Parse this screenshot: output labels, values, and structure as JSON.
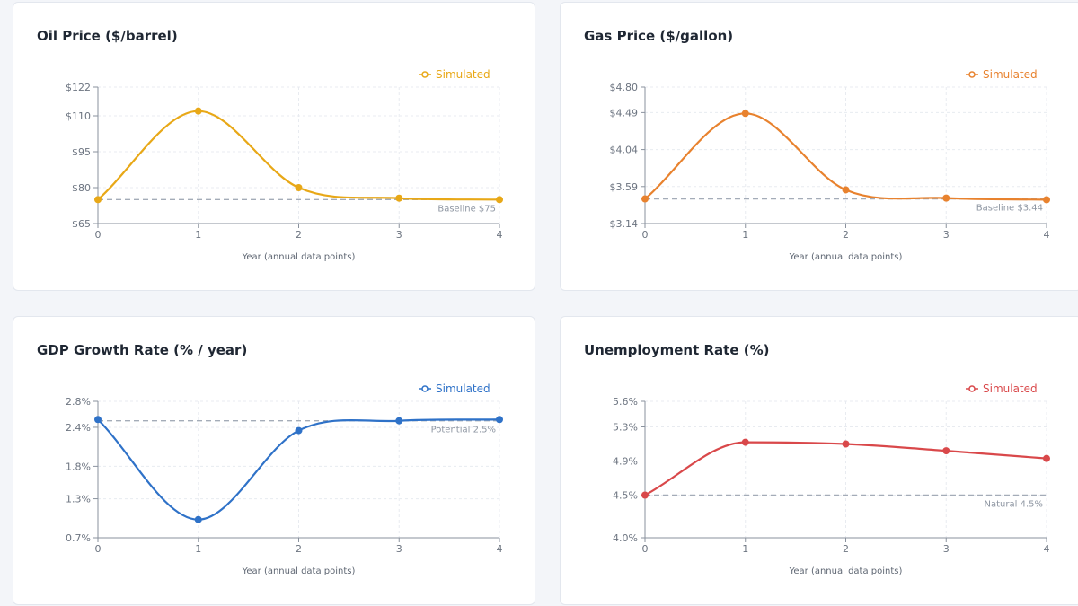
{
  "chart_data": [
    {
      "type": "line",
      "title": "Oil Price ($/barrel)",
      "xlabel": "Year (annual data points)",
      "ylabel": "",
      "x": [
        0,
        1,
        2,
        3,
        4
      ],
      "xticks": [
        "0",
        "1",
        "2",
        "3",
        "4"
      ],
      "ylim": [
        65,
        122
      ],
      "yticks": [
        {
          "value": 65,
          "label": "$65"
        },
        {
          "value": 80,
          "label": "$80"
        },
        {
          "value": 95,
          "label": "$95"
        },
        {
          "value": 110,
          "label": "$110"
        },
        {
          "value": 122,
          "label": "$122"
        }
      ],
      "series": [
        {
          "name": "Simulated",
          "values": [
            75,
            112,
            80,
            75.6,
            75
          ],
          "color": "#e8a817"
        }
      ],
      "reference_line": {
        "value": 75,
        "label": "Baseline $75",
        "color": "#a4acb8"
      },
      "legend_position": "top-right",
      "grid": true
    },
    {
      "type": "line",
      "title": "Gas Price ($/gallon)",
      "xlabel": "Year (annual data points)",
      "ylabel": "",
      "x": [
        0,
        1,
        2,
        3,
        4
      ],
      "xticks": [
        "0",
        "1",
        "2",
        "3",
        "4"
      ],
      "ylim": [
        3.14,
        4.8
      ],
      "yticks": [
        {
          "value": 3.14,
          "label": "$3.14"
        },
        {
          "value": 3.59,
          "label": "$3.59"
        },
        {
          "value": 4.04,
          "label": "$4.04"
        },
        {
          "value": 4.49,
          "label": "$4.49"
        },
        {
          "value": 4.8,
          "label": "$4.80"
        }
      ],
      "series": [
        {
          "name": "Simulated",
          "values": [
            3.44,
            4.48,
            3.55,
            3.45,
            3.43
          ],
          "color": "#e8822e"
        }
      ],
      "reference_line": {
        "value": 3.44,
        "label": "Baseline $3.44",
        "color": "#a4acb8"
      },
      "legend_position": "top-right",
      "grid": true
    },
    {
      "type": "line",
      "title": "GDP Growth Rate (% / year)",
      "xlabel": "Year (annual data points)",
      "ylabel": "",
      "x": [
        0,
        1,
        2,
        3,
        4
      ],
      "xticks": [
        "0",
        "1",
        "2",
        "3",
        "4"
      ],
      "ylim": [
        0.7,
        2.8
      ],
      "yticks": [
        {
          "value": 0.7,
          "label": "0.7%"
        },
        {
          "value": 1.3,
          "label": "1.3%"
        },
        {
          "value": 1.8,
          "label": "1.8%"
        },
        {
          "value": 2.4,
          "label": "2.4%"
        },
        {
          "value": 2.8,
          "label": "2.8%"
        }
      ],
      "series": [
        {
          "name": "Simulated",
          "values": [
            2.52,
            0.98,
            2.35,
            2.5,
            2.52
          ],
          "color": "#2f72c8"
        }
      ],
      "reference_line": {
        "value": 2.5,
        "label": "Potential 2.5%",
        "color": "#a4acb8"
      },
      "legend_position": "top-right",
      "grid": true
    },
    {
      "type": "line",
      "title": "Unemployment Rate (%)",
      "xlabel": "Year (annual data points)",
      "ylabel": "",
      "x": [
        0,
        1,
        2,
        3,
        4
      ],
      "xticks": [
        "0",
        "1",
        "2",
        "3",
        "4"
      ],
      "ylim": [
        4.0,
        5.6
      ],
      "yticks": [
        {
          "value": 4.0,
          "label": "4.0%"
        },
        {
          "value": 4.5,
          "label": "4.5%"
        },
        {
          "value": 4.9,
          "label": "4.9%"
        },
        {
          "value": 5.3,
          "label": "5.3%"
        },
        {
          "value": 5.6,
          "label": "5.6%"
        }
      ],
      "series": [
        {
          "name": "Simulated",
          "values": [
            4.5,
            5.12,
            5.1,
            5.02,
            4.93
          ],
          "color": "#d9484a"
        }
      ],
      "reference_line": {
        "value": 4.5,
        "label": "Natural 4.5%",
        "color": "#a4acb8"
      },
      "legend_position": "top-right",
      "grid": true
    }
  ]
}
